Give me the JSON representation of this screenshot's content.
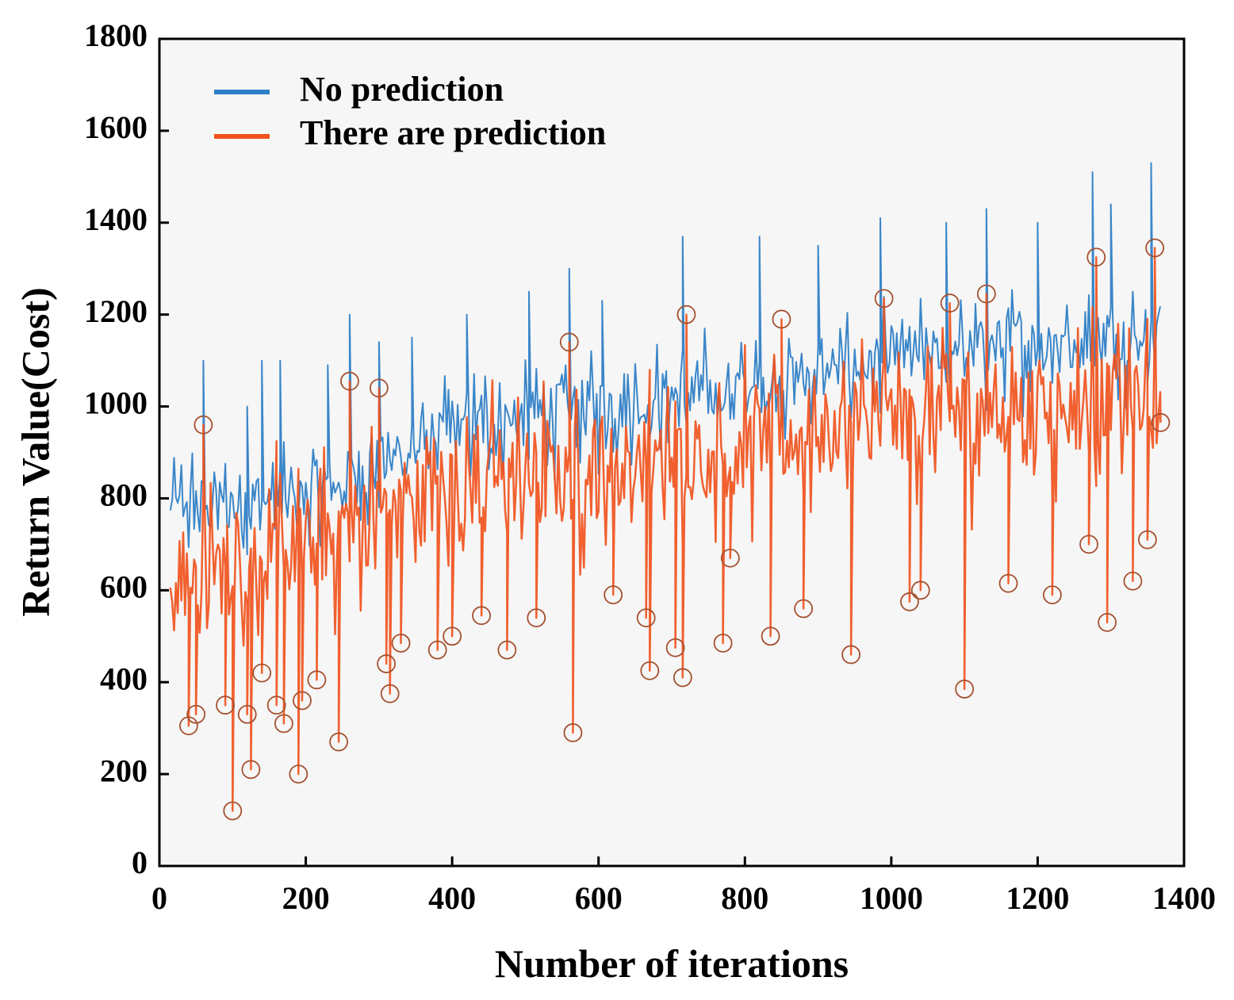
{
  "chart_data": {
    "type": "line",
    "title": "",
    "xlabel": "Number of iterations",
    "ylabel": "Return Value(Cost)",
    "xlim": [
      0,
      1400
    ],
    "ylim": [
      0,
      1800
    ],
    "xticks": [
      0,
      200,
      400,
      600,
      800,
      1000,
      1200,
      1400
    ],
    "yticks": [
      0,
      200,
      400,
      600,
      800,
      1000,
      1200,
      1400,
      1600,
      1800
    ],
    "xtick_labels": [
      "0",
      "200",
      "400",
      "600",
      "800",
      "1000",
      "1200",
      "1400"
    ],
    "ytick_labels": [
      "0",
      "200",
      "400",
      "600",
      "800",
      "1000",
      "1200",
      "1400",
      "1600",
      "1800"
    ],
    "legend_position": "top-left",
    "grid": false,
    "iterations": {
      "start": 15,
      "end": 1365,
      "step": 5
    },
    "series": [
      {
        "name": "No prediction",
        "color": "#2f7fc6",
        "trend": [
          [
            15,
            780
          ],
          [
            200,
            800
          ],
          [
            400,
            950
          ],
          [
            600,
            1000
          ],
          [
            800,
            1040
          ],
          [
            1000,
            1100
          ],
          [
            1200,
            1140
          ],
          [
            1365,
            1160
          ]
        ],
        "spread": 160,
        "spikes": [
          [
            60,
            1100
          ],
          [
            120,
            1000
          ],
          [
            140,
            1100
          ],
          [
            165,
            1100
          ],
          [
            230,
            1090
          ],
          [
            260,
            1200
          ],
          [
            300,
            1140
          ],
          [
            345,
            1150
          ],
          [
            420,
            1200
          ],
          [
            505,
            1250
          ],
          [
            560,
            1300
          ],
          [
            605,
            1230
          ],
          [
            715,
            1370
          ],
          [
            820,
            1370
          ],
          [
            900,
            1350
          ],
          [
            985,
            1410
          ],
          [
            1075,
            1400
          ],
          [
            1130,
            1430
          ],
          [
            1200,
            1400
          ],
          [
            1275,
            1510
          ],
          [
            1300,
            1440
          ],
          [
            1355,
            1530
          ]
        ]
      },
      {
        "name": "There are prediction",
        "color": "#f0521d",
        "trend": [
          [
            15,
            620
          ],
          [
            200,
            700
          ],
          [
            400,
            830
          ],
          [
            600,
            860
          ],
          [
            800,
            920
          ],
          [
            1000,
            970
          ],
          [
            1200,
            1000
          ],
          [
            1365,
            1010
          ]
        ],
        "spread": 260,
        "markers": [
          [
            40,
            305
          ],
          [
            50,
            330
          ],
          [
            60,
            960
          ],
          [
            90,
            350
          ],
          [
            100,
            120
          ],
          [
            120,
            330
          ],
          [
            125,
            210
          ],
          [
            140,
            420
          ],
          [
            160,
            350
          ],
          [
            170,
            310
          ],
          [
            190,
            200
          ],
          [
            195,
            360
          ],
          [
            215,
            405
          ],
          [
            245,
            270
          ],
          [
            260,
            1055
          ],
          [
            300,
            1040
          ],
          [
            310,
            440
          ],
          [
            315,
            375
          ],
          [
            330,
            485
          ],
          [
            380,
            470
          ],
          [
            400,
            500
          ],
          [
            440,
            545
          ],
          [
            475,
            470
          ],
          [
            515,
            540
          ],
          [
            560,
            1140
          ],
          [
            565,
            290
          ],
          [
            620,
            590
          ],
          [
            665,
            540
          ],
          [
            670,
            425
          ],
          [
            705,
            475
          ],
          [
            715,
            410
          ],
          [
            720,
            1200
          ],
          [
            770,
            485
          ],
          [
            780,
            670
          ],
          [
            835,
            500
          ],
          [
            850,
            1190
          ],
          [
            880,
            560
          ],
          [
            945,
            460
          ],
          [
            990,
            1235
          ],
          [
            1025,
            575
          ],
          [
            1040,
            600
          ],
          [
            1080,
            1225
          ],
          [
            1100,
            385
          ],
          [
            1130,
            1245
          ],
          [
            1160,
            615
          ],
          [
            1220,
            590
          ],
          [
            1270,
            700
          ],
          [
            1280,
            1325
          ],
          [
            1295,
            530
          ],
          [
            1330,
            620
          ],
          [
            1350,
            710
          ],
          [
            1360,
            1345
          ],
          [
            1368,
            965
          ]
        ]
      }
    ]
  }
}
